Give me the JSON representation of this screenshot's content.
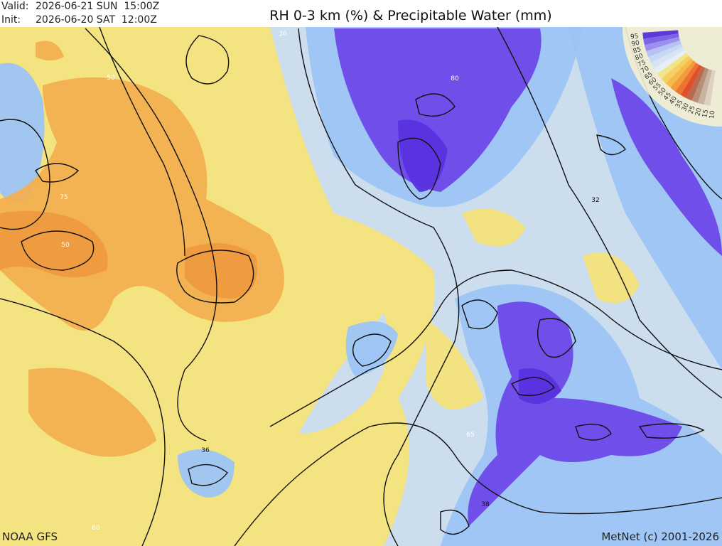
{
  "header": {
    "valid_label": "Valid:",
    "valid": "2026-06-21 SUN  15:00Z",
    "init_label": "Init:",
    "init": "2026-06-20 SAT  12:00Z",
    "title": "RH 0-3 km (%) & Precipitable Water (mm)"
  },
  "legend": {
    "labels": [
      "95",
      "90",
      "85",
      "80",
      "75",
      "70",
      "65",
      "60",
      "55",
      "50",
      "45",
      "40",
      "35",
      "30",
      "25",
      "20",
      "15",
      "10"
    ]
  },
  "contour_labels": [
    "36",
    "80",
    "50",
    "75",
    "50",
    "32",
    "36",
    "65",
    "38",
    "60"
  ],
  "footer": {
    "source": "NOAA GFS",
    "credit": "MetNet (c) 2001-2026"
  }
}
